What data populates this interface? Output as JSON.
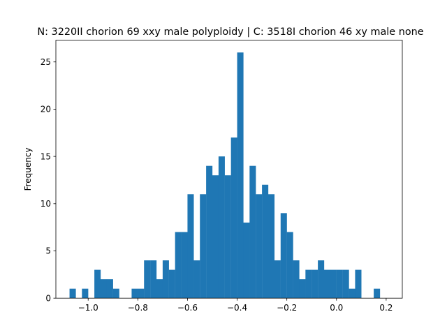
{
  "chart_data": {
    "type": "bar",
    "title": "N: 3220II chorion 69 xxy male polyploidy | C: 3518I chorion 46 xy male none",
    "xlabel": "",
    "ylabel": "Frequency",
    "xlim": [
      -1.13,
      0.265
    ],
    "ylim": [
      0,
      27.3
    ],
    "xticks": [
      -1.0,
      -0.8,
      -0.6,
      -0.4,
      -0.2,
      0.0,
      0.2
    ],
    "xtick_labels": [
      "−1.0",
      "−0.8",
      "−0.6",
      "−0.4",
      "−0.2",
      "0.0",
      "0.2"
    ],
    "yticks": [
      0,
      5,
      10,
      15,
      20,
      25
    ],
    "ytick_labels": [
      "0",
      "5",
      "10",
      "15",
      "20",
      "25"
    ],
    "grid": false,
    "bin_start": -1.075,
    "bin_width": 0.025,
    "counts": [
      1,
      0,
      1,
      0,
      3,
      2,
      2,
      1,
      0,
      0,
      1,
      1,
      4,
      4,
      2,
      4,
      3,
      7,
      7,
      11,
      4,
      11,
      14,
      13,
      15,
      13,
      17,
      26,
      8,
      14,
      11,
      12,
      11,
      4,
      9,
      7,
      4,
      2,
      3,
      3,
      4,
      3,
      3,
      3,
      3,
      1,
      3,
      0,
      0,
      1
    ],
    "bar_color": "#1f77b4"
  }
}
